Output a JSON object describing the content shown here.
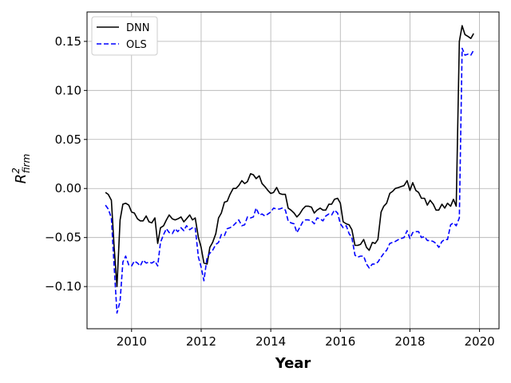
{
  "chart_data": {
    "type": "line",
    "title": "",
    "xlabel": "Year",
    "ylabel_base": "R",
    "ylabel_sup": "2",
    "ylabel_sub": "firm",
    "xlim": [
      2008.72,
      2020.56
    ],
    "ylim": [
      -0.143,
      0.18
    ],
    "x_ticks": [
      2010,
      2012,
      2014,
      2016,
      2018,
      2020
    ],
    "x_tick_labels": [
      "2010",
      "2012",
      "2014",
      "2016",
      "2018",
      "2020"
    ],
    "y_ticks": [
      -0.1,
      -0.05,
      0.0,
      0.05,
      0.1,
      0.15
    ],
    "y_tick_labels": [
      "−0.10",
      "−0.05",
      "0.00",
      "0.05",
      "0.10",
      "0.15"
    ],
    "grid": true,
    "legend_position": "top-left",
    "series": [
      {
        "name": "DNN",
        "color": "#000000",
        "style": "solid",
        "points": [
          [
            2009.25,
            -0.004
          ],
          [
            2009.33,
            -0.006
          ],
          [
            2009.42,
            -0.012
          ],
          [
            2009.5,
            -0.06
          ],
          [
            2009.58,
            -0.1
          ],
          [
            2009.67,
            -0.032
          ],
          [
            2009.75,
            -0.016
          ],
          [
            2009.83,
            -0.015
          ],
          [
            2009.92,
            -0.017
          ],
          [
            2010.0,
            -0.024
          ],
          [
            2010.08,
            -0.025
          ],
          [
            2010.17,
            -0.031
          ],
          [
            2010.25,
            -0.033
          ],
          [
            2010.33,
            -0.033
          ],
          [
            2010.42,
            -0.028
          ],
          [
            2010.5,
            -0.034
          ],
          [
            2010.58,
            -0.035
          ],
          [
            2010.67,
            -0.03
          ],
          [
            2010.75,
            -0.056
          ],
          [
            2010.83,
            -0.04
          ],
          [
            2010.92,
            -0.038
          ],
          [
            2011.0,
            -0.032
          ],
          [
            2011.08,
            -0.027
          ],
          [
            2011.17,
            -0.031
          ],
          [
            2011.25,
            -0.032
          ],
          [
            2011.33,
            -0.031
          ],
          [
            2011.42,
            -0.029
          ],
          [
            2011.5,
            -0.034
          ],
          [
            2011.58,
            -0.031
          ],
          [
            2011.67,
            -0.027
          ],
          [
            2011.75,
            -0.032
          ],
          [
            2011.83,
            -0.03
          ],
          [
            2011.92,
            -0.05
          ],
          [
            2012.0,
            -0.06
          ],
          [
            2012.08,
            -0.076
          ],
          [
            2012.17,
            -0.077
          ],
          [
            2012.25,
            -0.06
          ],
          [
            2012.33,
            -0.055
          ],
          [
            2012.42,
            -0.046
          ],
          [
            2012.5,
            -0.03
          ],
          [
            2012.58,
            -0.025
          ],
          [
            2012.67,
            -0.014
          ],
          [
            2012.75,
            -0.013
          ],
          [
            2012.83,
            -0.006
          ],
          [
            2012.92,
            0.0
          ],
          [
            2013.0,
            0.0
          ],
          [
            2013.08,
            0.003
          ],
          [
            2013.17,
            0.008
          ],
          [
            2013.25,
            0.005
          ],
          [
            2013.33,
            0.007
          ],
          [
            2013.42,
            0.015
          ],
          [
            2013.5,
            0.014
          ],
          [
            2013.58,
            0.01
          ],
          [
            2013.67,
            0.013
          ],
          [
            2013.75,
            0.005
          ],
          [
            2013.83,
            0.002
          ],
          [
            2013.92,
            -0.002
          ],
          [
            2014.0,
            -0.005
          ],
          [
            2014.08,
            -0.004
          ],
          [
            2014.17,
            0.001
          ],
          [
            2014.25,
            -0.005
          ],
          [
            2014.33,
            -0.006
          ],
          [
            2014.42,
            -0.006
          ],
          [
            2014.5,
            -0.02
          ],
          [
            2014.58,
            -0.022
          ],
          [
            2014.67,
            -0.025
          ],
          [
            2014.75,
            -0.029
          ],
          [
            2014.83,
            -0.026
          ],
          [
            2014.92,
            -0.021
          ],
          [
            2015.0,
            -0.018
          ],
          [
            2015.08,
            -0.018
          ],
          [
            2015.17,
            -0.019
          ],
          [
            2015.25,
            -0.025
          ],
          [
            2015.33,
            -0.022
          ],
          [
            2015.42,
            -0.02
          ],
          [
            2015.5,
            -0.022
          ],
          [
            2015.58,
            -0.022
          ],
          [
            2015.67,
            -0.016
          ],
          [
            2015.75,
            -0.016
          ],
          [
            2015.83,
            -0.011
          ],
          [
            2015.92,
            -0.01
          ],
          [
            2016.0,
            -0.015
          ],
          [
            2016.08,
            -0.034
          ],
          [
            2016.17,
            -0.036
          ],
          [
            2016.25,
            -0.037
          ],
          [
            2016.33,
            -0.042
          ],
          [
            2016.42,
            -0.058
          ],
          [
            2016.5,
            -0.058
          ],
          [
            2016.58,
            -0.057
          ],
          [
            2016.67,
            -0.052
          ],
          [
            2016.75,
            -0.06
          ],
          [
            2016.83,
            -0.063
          ],
          [
            2016.92,
            -0.055
          ],
          [
            2017.0,
            -0.056
          ],
          [
            2017.08,
            -0.052
          ],
          [
            2017.17,
            -0.024
          ],
          [
            2017.25,
            -0.018
          ],
          [
            2017.33,
            -0.015
          ],
          [
            2017.42,
            -0.005
          ],
          [
            2017.5,
            -0.003
          ],
          [
            2017.58,
            0.0
          ],
          [
            2017.67,
            0.001
          ],
          [
            2017.75,
            0.002
          ],
          [
            2017.83,
            0.003
          ],
          [
            2017.92,
            0.008
          ],
          [
            2018.0,
            -0.002
          ],
          [
            2018.08,
            0.006
          ],
          [
            2018.17,
            -0.002
          ],
          [
            2018.25,
            -0.004
          ],
          [
            2018.33,
            -0.01
          ],
          [
            2018.42,
            -0.01
          ],
          [
            2018.5,
            -0.017
          ],
          [
            2018.58,
            -0.012
          ],
          [
            2018.67,
            -0.016
          ],
          [
            2018.75,
            -0.022
          ],
          [
            2018.83,
            -0.022
          ],
          [
            2018.92,
            -0.016
          ],
          [
            2019.0,
            -0.02
          ],
          [
            2019.08,
            -0.015
          ],
          [
            2019.17,
            -0.018
          ],
          [
            2019.25,
            -0.011
          ],
          [
            2019.33,
            -0.018
          ],
          [
            2019.42,
            0.15
          ],
          [
            2019.5,
            0.166
          ],
          [
            2019.58,
            0.157
          ],
          [
            2019.67,
            0.155
          ],
          [
            2019.75,
            0.153
          ],
          [
            2019.83,
            0.158
          ]
        ]
      },
      {
        "name": "OLS",
        "color": "#0000ff",
        "style": "dashed",
        "points": [
          [
            2009.25,
            -0.017
          ],
          [
            2009.33,
            -0.021
          ],
          [
            2009.42,
            -0.03
          ],
          [
            2009.5,
            -0.08
          ],
          [
            2009.58,
            -0.127
          ],
          [
            2009.67,
            -0.115
          ],
          [
            2009.75,
            -0.075
          ],
          [
            2009.83,
            -0.069
          ],
          [
            2009.92,
            -0.078
          ],
          [
            2010.0,
            -0.079
          ],
          [
            2010.08,
            -0.074
          ],
          [
            2010.17,
            -0.076
          ],
          [
            2010.25,
            -0.079
          ],
          [
            2010.33,
            -0.073
          ],
          [
            2010.42,
            -0.076
          ],
          [
            2010.5,
            -0.075
          ],
          [
            2010.58,
            -0.076
          ],
          [
            2010.67,
            -0.074
          ],
          [
            2010.75,
            -0.079
          ],
          [
            2010.83,
            -0.055
          ],
          [
            2010.92,
            -0.047
          ],
          [
            2011.0,
            -0.041
          ],
          [
            2011.08,
            -0.045
          ],
          [
            2011.17,
            -0.046
          ],
          [
            2011.25,
            -0.041
          ],
          [
            2011.33,
            -0.044
          ],
          [
            2011.42,
            -0.04
          ],
          [
            2011.5,
            -0.043
          ],
          [
            2011.58,
            -0.038
          ],
          [
            2011.67,
            -0.042
          ],
          [
            2011.75,
            -0.04
          ],
          [
            2011.83,
            -0.04
          ],
          [
            2011.92,
            -0.07
          ],
          [
            2012.0,
            -0.08
          ],
          [
            2012.08,
            -0.094
          ],
          [
            2012.17,
            -0.07
          ],
          [
            2012.25,
            -0.066
          ],
          [
            2012.33,
            -0.063
          ],
          [
            2012.42,
            -0.057
          ],
          [
            2012.5,
            -0.055
          ],
          [
            2012.58,
            -0.047
          ],
          [
            2012.67,
            -0.048
          ],
          [
            2012.75,
            -0.041
          ],
          [
            2012.83,
            -0.04
          ],
          [
            2012.92,
            -0.038
          ],
          [
            2013.0,
            -0.035
          ],
          [
            2013.08,
            -0.032
          ],
          [
            2013.17,
            -0.038
          ],
          [
            2013.25,
            -0.037
          ],
          [
            2013.33,
            -0.029
          ],
          [
            2013.42,
            -0.03
          ],
          [
            2013.5,
            -0.029
          ],
          [
            2013.58,
            -0.02
          ],
          [
            2013.67,
            -0.027
          ],
          [
            2013.75,
            -0.026
          ],
          [
            2013.83,
            -0.028
          ],
          [
            2013.92,
            -0.026
          ],
          [
            2014.0,
            -0.024
          ],
          [
            2014.08,
            -0.02
          ],
          [
            2014.17,
            -0.021
          ],
          [
            2014.25,
            -0.021
          ],
          [
            2014.33,
            -0.02
          ],
          [
            2014.42,
            -0.022
          ],
          [
            2014.5,
            -0.033
          ],
          [
            2014.58,
            -0.035
          ],
          [
            2014.67,
            -0.036
          ],
          [
            2014.75,
            -0.045
          ],
          [
            2014.83,
            -0.04
          ],
          [
            2014.92,
            -0.034
          ],
          [
            2015.0,
            -0.032
          ],
          [
            2015.08,
            -0.032
          ],
          [
            2015.17,
            -0.033
          ],
          [
            2015.25,
            -0.036
          ],
          [
            2015.33,
            -0.03
          ],
          [
            2015.42,
            -0.031
          ],
          [
            2015.5,
            -0.033
          ],
          [
            2015.58,
            -0.028
          ],
          [
            2015.67,
            -0.026
          ],
          [
            2015.75,
            -0.027
          ],
          [
            2015.83,
            -0.022
          ],
          [
            2015.92,
            -0.025
          ],
          [
            2016.0,
            -0.036
          ],
          [
            2016.08,
            -0.04
          ],
          [
            2016.17,
            -0.038
          ],
          [
            2016.25,
            -0.046
          ],
          [
            2016.33,
            -0.05
          ],
          [
            2016.42,
            -0.068
          ],
          [
            2016.5,
            -0.07
          ],
          [
            2016.58,
            -0.069
          ],
          [
            2016.67,
            -0.069
          ],
          [
            2016.75,
            -0.077
          ],
          [
            2016.83,
            -0.081
          ],
          [
            2016.92,
            -0.077
          ],
          [
            2017.0,
            -0.077
          ],
          [
            2017.08,
            -0.075
          ],
          [
            2017.17,
            -0.07
          ],
          [
            2017.25,
            -0.066
          ],
          [
            2017.33,
            -0.063
          ],
          [
            2017.42,
            -0.056
          ],
          [
            2017.5,
            -0.055
          ],
          [
            2017.58,
            -0.054
          ],
          [
            2017.67,
            -0.052
          ],
          [
            2017.75,
            -0.051
          ],
          [
            2017.83,
            -0.05
          ],
          [
            2017.92,
            -0.043
          ],
          [
            2018.0,
            -0.051
          ],
          [
            2018.08,
            -0.045
          ],
          [
            2018.17,
            -0.044
          ],
          [
            2018.25,
            -0.044
          ],
          [
            2018.33,
            -0.05
          ],
          [
            2018.42,
            -0.049
          ],
          [
            2018.5,
            -0.053
          ],
          [
            2018.58,
            -0.053
          ],
          [
            2018.67,
            -0.054
          ],
          [
            2018.75,
            -0.056
          ],
          [
            2018.83,
            -0.06
          ],
          [
            2018.92,
            -0.054
          ],
          [
            2019.0,
            -0.052
          ],
          [
            2019.08,
            -0.052
          ],
          [
            2019.17,
            -0.037
          ],
          [
            2019.25,
            -0.035
          ],
          [
            2019.33,
            -0.038
          ],
          [
            2019.42,
            -0.03
          ],
          [
            2019.5,
            0.143
          ],
          [
            2019.58,
            0.136
          ],
          [
            2019.67,
            0.137
          ],
          [
            2019.75,
            0.136
          ],
          [
            2019.83,
            0.141
          ]
        ]
      }
    ]
  }
}
